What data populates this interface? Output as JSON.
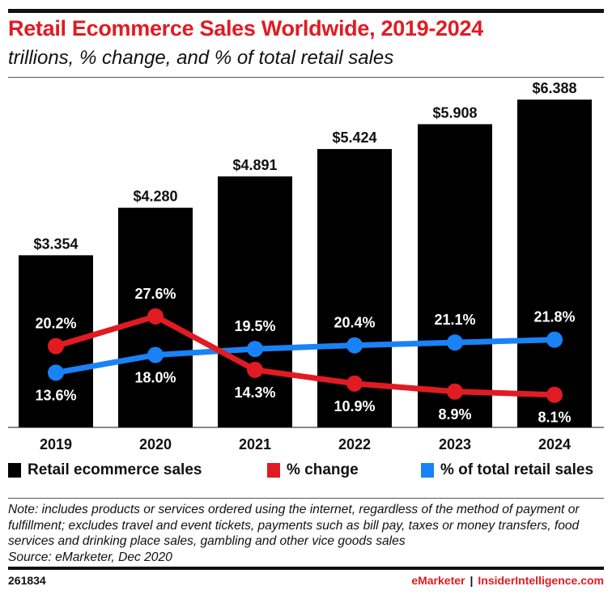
{
  "chart_data": {
    "type": "bar",
    "title": "Retail Ecommerce Sales Worldwide, 2019-2024",
    "subtitle": "trillions, % change, and % of total retail sales",
    "categories": [
      "2019",
      "2020",
      "2021",
      "2022",
      "2023",
      "2024"
    ],
    "series": [
      {
        "name": "Retail ecommerce sales",
        "type": "bar",
        "color": "#000000",
        "values": [
          3.354,
          4.28,
          4.891,
          5.424,
          5.908,
          6.388
        ],
        "labels": [
          "$3.354",
          "$4.280",
          "$4.891",
          "$5.424",
          "$5.908",
          "$6.388"
        ]
      },
      {
        "name": "% change",
        "type": "line",
        "color": "#e11b22",
        "values": [
          20.2,
          27.6,
          14.3,
          10.9,
          8.9,
          8.1
        ],
        "labels": [
          "20.2%",
          "27.6%",
          "14.3%",
          "10.9%",
          "8.9%",
          "8.1%"
        ]
      },
      {
        "name": "% of total retail sales",
        "type": "line",
        "color": "#1a82f7",
        "values": [
          13.6,
          18.0,
          19.5,
          20.4,
          21.1,
          21.8
        ],
        "labels": [
          "13.6%",
          "18.0%",
          "19.5%",
          "20.4%",
          "21.1%",
          "21.8%"
        ]
      }
    ],
    "legend": "bottom",
    "grid": false
  },
  "note": "Note: includes products or services ordered using the internet, regardless of the method of payment or fulfillment; excludes travel and event tickets, payments such as bill pay, taxes or money transfers, food services and drinking place sales, gambling and other vice goods sales",
  "source": "Source: eMarketer, Dec 2020",
  "footer": {
    "id": "261834",
    "brand1": "eMarketer",
    "separator": "|",
    "brand2": "InsiderIntelligence.com"
  }
}
